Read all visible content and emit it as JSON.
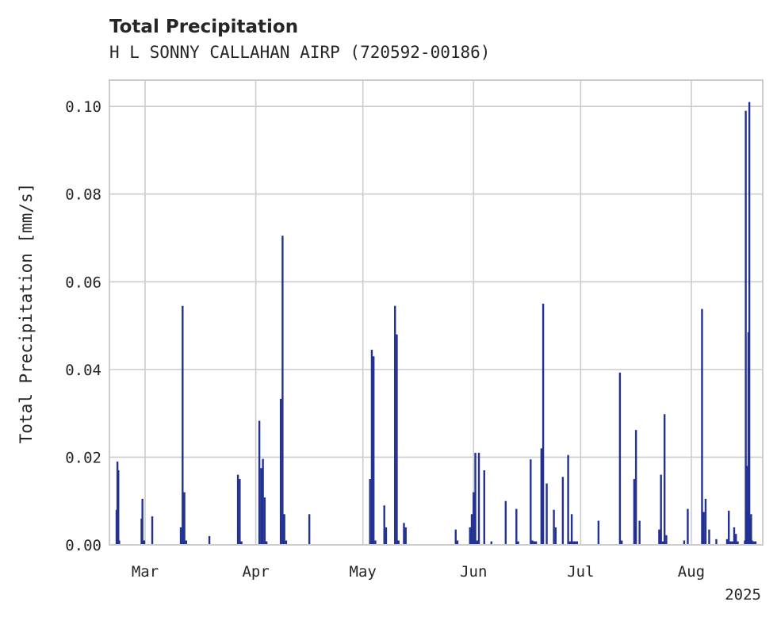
{
  "chart_data": {
    "type": "bar",
    "title": "Total Precipitation",
    "subtitle": "H L SONNY CALLAHAN AIRP (720592-00186)",
    "ylabel": "Total Precipitation [mm/s]",
    "xlabel": "",
    "year_label": "2025",
    "x_ticks": [
      {
        "date": "2025-03-01",
        "label": "Mar"
      },
      {
        "date": "2025-04-01",
        "label": "Apr"
      },
      {
        "date": "2025-05-01",
        "label": "May"
      },
      {
        "date": "2025-06-01",
        "label": "Jun"
      },
      {
        "date": "2025-07-01",
        "label": "Jul"
      },
      {
        "date": "2025-08-01",
        "label": "Aug"
      }
    ],
    "y_ticks": [
      "0.00",
      "0.02",
      "0.04",
      "0.06",
      "0.08",
      "0.10"
    ],
    "xlim": [
      "2025-02-19",
      "2025-08-21"
    ],
    "ylim": [
      0,
      0.106
    ],
    "grid": true,
    "bar_color": "#233192",
    "series": [
      {
        "x": [
          "2025-02-21T00:00",
          "2025-02-21T06:00",
          "2025-02-21T12:00",
          "2025-02-21T18:00",
          "2025-02-28T00:00",
          "2025-02-28T06:00",
          "2025-02-28T12:00",
          "2025-02-28T18:00",
          "2025-03-03T00:00",
          "2025-03-11T00:00",
          "2025-03-11T12:00",
          "2025-03-12T00:00",
          "2025-03-12T12:00",
          "2025-03-19T00:00",
          "2025-03-27T00:00",
          "2025-03-27T12:00",
          "2025-03-28T00:00",
          "2025-04-02T00:00",
          "2025-04-02T12:00",
          "2025-04-03T00:00",
          "2025-04-03T12:00",
          "2025-04-04T00:00",
          "2025-04-08T00:00",
          "2025-04-08T12:00",
          "2025-04-09T00:00",
          "2025-04-09T12:00",
          "2025-04-16T00:00",
          "2025-05-03T00:00",
          "2025-05-03T12:00",
          "2025-05-04T00:00",
          "2025-05-04T12:00",
          "2025-05-07T00:00",
          "2025-05-07T12:00",
          "2025-05-10T00:00",
          "2025-05-10T12:00",
          "2025-05-11T00:00",
          "2025-05-12T12:00",
          "2025-05-13T00:00",
          "2025-05-27T00:00",
          "2025-05-27T12:00",
          "2025-05-31T00:00",
          "2025-05-31T12:00",
          "2025-06-01T00:00",
          "2025-06-01T12:00",
          "2025-06-02T00:00",
          "2025-06-02T12:00",
          "2025-06-04T00:00",
          "2025-06-06T00:00",
          "2025-06-10T00:00",
          "2025-06-13T00:00",
          "2025-06-13T12:00",
          "2025-06-17T00:00",
          "2025-06-17T12:00",
          "2025-06-18T00:00",
          "2025-06-18T12:00",
          "2025-06-20T00:00",
          "2025-06-20T12:00",
          "2025-06-21T12:00",
          "2025-06-23T12:00",
          "2025-06-24T00:00",
          "2025-06-26T00:00",
          "2025-06-27T12:00",
          "2025-06-28T00:00",
          "2025-06-28T12:00",
          "2025-06-29T00:00",
          "2025-06-29T12:00",
          "2025-06-30T00:00",
          "2025-07-06T00:00",
          "2025-07-12T00:00",
          "2025-07-12T12:00",
          "2025-07-16T00:00",
          "2025-07-16T12:00",
          "2025-07-17T12:00",
          "2025-07-23T00:00",
          "2025-07-23T12:00",
          "2025-07-24T00:00",
          "2025-07-24T12:00",
          "2025-07-25T00:00",
          "2025-07-30T00:00",
          "2025-07-31T00:00",
          "2025-08-04T00:00",
          "2025-08-04T12:00",
          "2025-08-05T00:00",
          "2025-08-06T00:00",
          "2025-08-08T00:00",
          "2025-08-11T00:00",
          "2025-08-11T12:00",
          "2025-08-12T00:00",
          "2025-08-12T12:00",
          "2025-08-13T00:00",
          "2025-08-13T12:00",
          "2025-08-14T00:00"
        ],
        "values": [
          0.008,
          0.019,
          0.017,
          0.001,
          0.006,
          0.0105,
          0.001,
          0.001,
          0.0065,
          0.004,
          0.0545,
          0.012,
          0.001,
          0.002,
          0.016,
          0.015,
          0.0008,
          0.0283,
          0.0175,
          0.0196,
          0.0108,
          0.0008,
          0.0333,
          0.0705,
          0.007,
          0.001,
          0.007,
          0.015,
          0.0445,
          0.043,
          0.001,
          0.009,
          0.004,
          0.0545,
          0.048,
          0.001,
          0.005,
          0.004,
          0.0035,
          0.001,
          0.004,
          0.007,
          0.012,
          0.021,
          0.001,
          0.021,
          0.017,
          0.0008,
          0.01,
          0.0082,
          0.0008,
          0.0195,
          0.001,
          0.0008,
          0.0008,
          0.022,
          0.055,
          0.014,
          0.008,
          0.004,
          0.0155,
          0.0205,
          0.0008,
          0.007,
          0.0008,
          0.0008,
          0.0008,
          0.0055,
          0.0393,
          0.001,
          0.015,
          0.0262,
          0.0055,
          0.0035,
          0.016,
          0.0008,
          0.0298,
          0.0022,
          0.001,
          0.0082,
          0.0538,
          0.0075,
          0.0105,
          0.0035,
          0.0013,
          0.0013,
          0.0078,
          0.0008,
          0.0008,
          0.004,
          0.0025,
          0.0008
        ]
      },
      {
        "x": [
          "2025-08-16T00:00",
          "2025-08-16T06:00",
          "2025-08-16T12:00",
          "2025-08-16T18:00",
          "2025-08-17T00:00",
          "2025-08-17T06:00",
          "2025-08-17T12:00",
          "2025-08-17T18:00",
          "2025-08-18T00:00",
          "2025-08-18T12:00",
          "2025-08-19T00:00"
        ],
        "values": [
          0.001,
          0.099,
          0.018,
          0.008,
          0.0485,
          0.101,
          0.006,
          0.007,
          0.001,
          0.0008,
          0.0008
        ]
      }
    ]
  }
}
